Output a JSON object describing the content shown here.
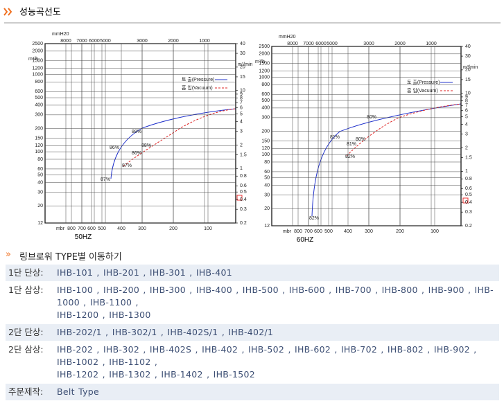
{
  "header": {
    "title": "성능곡선도"
  },
  "charts": [
    {
      "frequency": "50HZ",
      "pressure_unit": "mmH20",
      "flow_unit": "m³/h",
      "flow_unit_right": "m³/min",
      "bottom_unit": "mbr",
      "left_ticks": [
        2500,
        2000,
        1500,
        1200,
        1000,
        800,
        600,
        500,
        400,
        300,
        200,
        150,
        120,
        100,
        80,
        60,
        50,
        40,
        30,
        20,
        12
      ],
      "right_ticks": [
        40,
        30,
        20,
        15,
        10,
        9,
        8,
        7,
        6,
        5,
        4,
        3,
        2,
        1.5,
        1,
        0.8,
        0.6,
        0.5,
        0.4,
        0.3,
        0.2
      ],
      "top_ticks": [
        8000,
        7000,
        6000,
        5000,
        3000,
        2000,
        1000
      ],
      "bottom_ticks": [
        800,
        700,
        600,
        500,
        400,
        300,
        200,
        100
      ],
      "legend": [
        "토 출(Pressure)",
        "흡 입(Vacuum)"
      ],
      "pressure_labels": [
        "87%",
        "86%",
        "88%"
      ],
      "vacuum_labels": [
        "87%",
        "86%",
        "88%"
      ]
    },
    {
      "frequency": "60HZ",
      "pressure_unit": "mmH20",
      "flow_unit": "m³/h",
      "flow_unit_right": "m³/min",
      "bottom_unit": "mbr",
      "left_ticks": [
        2500,
        2000,
        1500,
        1200,
        1000,
        800,
        600,
        500,
        400,
        300,
        200,
        150,
        120,
        100,
        80,
        60,
        50,
        40,
        30,
        20,
        12
      ],
      "right_ticks": [
        40,
        30,
        20,
        15,
        10,
        9,
        8,
        7,
        6,
        5,
        4,
        3,
        2,
        1.5,
        1,
        0.8,
        0.6,
        0.5,
        0.4,
        0.3,
        0.2
      ],
      "top_ticks": [
        8000,
        7000,
        6000,
        5000,
        3000,
        2000,
        1000
      ],
      "bottom_ticks": [
        800,
        700,
        600,
        500,
        400,
        300,
        200,
        100
      ],
      "legend": [
        "토 출(Pressure)",
        "흡 입(Vacuum)"
      ],
      "pressure_labels": [
        "82%",
        "81%",
        "80%"
      ],
      "vacuum_labels": [
        "82%",
        "81%",
        "80%"
      ]
    }
  ],
  "type_links": {
    "title": "링브로워 TYPE별 이동하기",
    "rows": [
      {
        "label": "1단 단상:",
        "lines": [
          "IHB-101 , IHB-201 , IHB-301 , IHB-401"
        ]
      },
      {
        "label": "1단 삼상:",
        "lines": [
          "IHB-100 , IHB-200 , IHB-300 , IHB-400 , IHB-500 , IHB-600 , IHB-700 , IHB-800 , IHB-900 , IHB-1000 , IHB-1100 ,",
          "IHB-1200 , IHB-1300"
        ]
      },
      {
        "label": "2단 단상:",
        "lines": [
          "IHB-202/1 , IHB-302/1 , IHB-402S/1 , IHB-402/1"
        ]
      },
      {
        "label": "2단 삼상:",
        "lines": [
          "IHB-202 , IHB-302 , IHB-402S , IHB-402 , IHB-502 , IHB-602 , IHB-702 , IHB-802 , IHB-902 , IHB-1002 , IHB-1102 ,",
          "IHB-1202 , IHB-1302 , IHB-1402 , IHB-1502"
        ]
      },
      {
        "label": "주문제작:",
        "lines": [
          "Belt Type"
        ]
      }
    ]
  }
}
